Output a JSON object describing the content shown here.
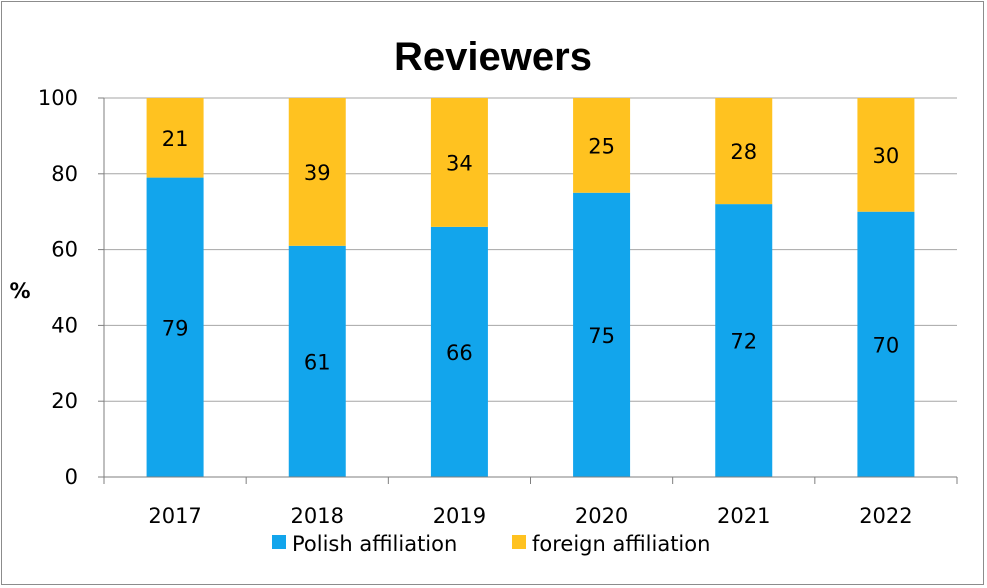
{
  "chart_data": {
    "type": "bar",
    "stacked": true,
    "title": "Reviewers",
    "xlabel": "",
    "ylabel": "%",
    "ylim": [
      0,
      100
    ],
    "yticks": [
      0,
      20,
      40,
      60,
      80,
      100
    ],
    "grid": true,
    "legend_position": "bottom",
    "categories": [
      "2017",
      "2018",
      "2019",
      "2020",
      "2021",
      "2022"
    ],
    "series": [
      {
        "name": "Polish affiliation",
        "color": "#12A5EC",
        "values": [
          79,
          61,
          66,
          75,
          72,
          70
        ]
      },
      {
        "name": "foreign affiliation",
        "color": "#FFC220",
        "values": [
          21,
          39,
          34,
          25,
          28,
          30
        ]
      }
    ]
  }
}
